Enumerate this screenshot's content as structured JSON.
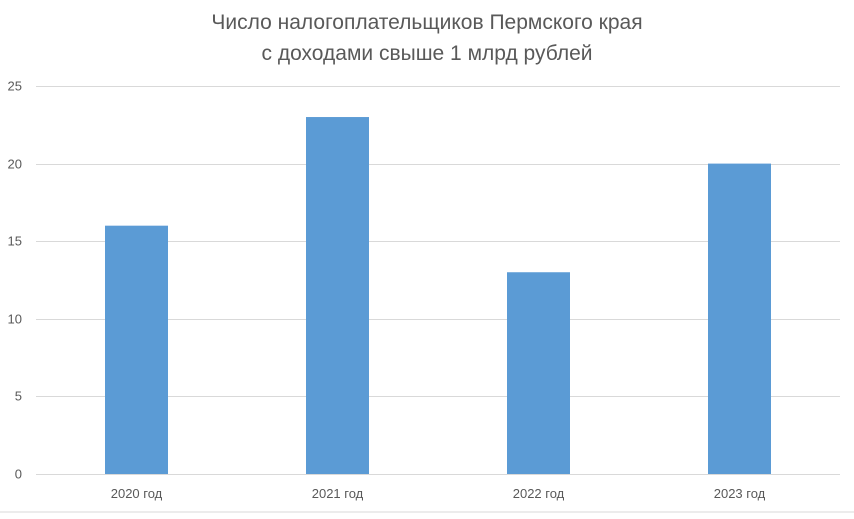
{
  "chart_data": {
    "type": "bar",
    "title": "Число налогоплательщиков Пермского края с доходами свыше 1 млрд рублей",
    "title_lines": [
      "Число налогоплательщиков Пермского края",
      "с доходами свыше 1 млрд рублей"
    ],
    "categories": [
      "2020 год",
      "2021 год",
      "2022 год",
      "2023 год"
    ],
    "values": [
      16,
      23,
      13,
      20
    ],
    "y_ticks": [
      "0",
      "5",
      "10",
      "15",
      "20",
      "25"
    ],
    "ylim": [
      0,
      25
    ],
    "xlabel": "",
    "ylabel": "",
    "grid": true,
    "legend": "none",
    "bar_color": "#5B9BD5",
    "grid_color": "#D9D9D9",
    "text_color": "#595959"
  }
}
